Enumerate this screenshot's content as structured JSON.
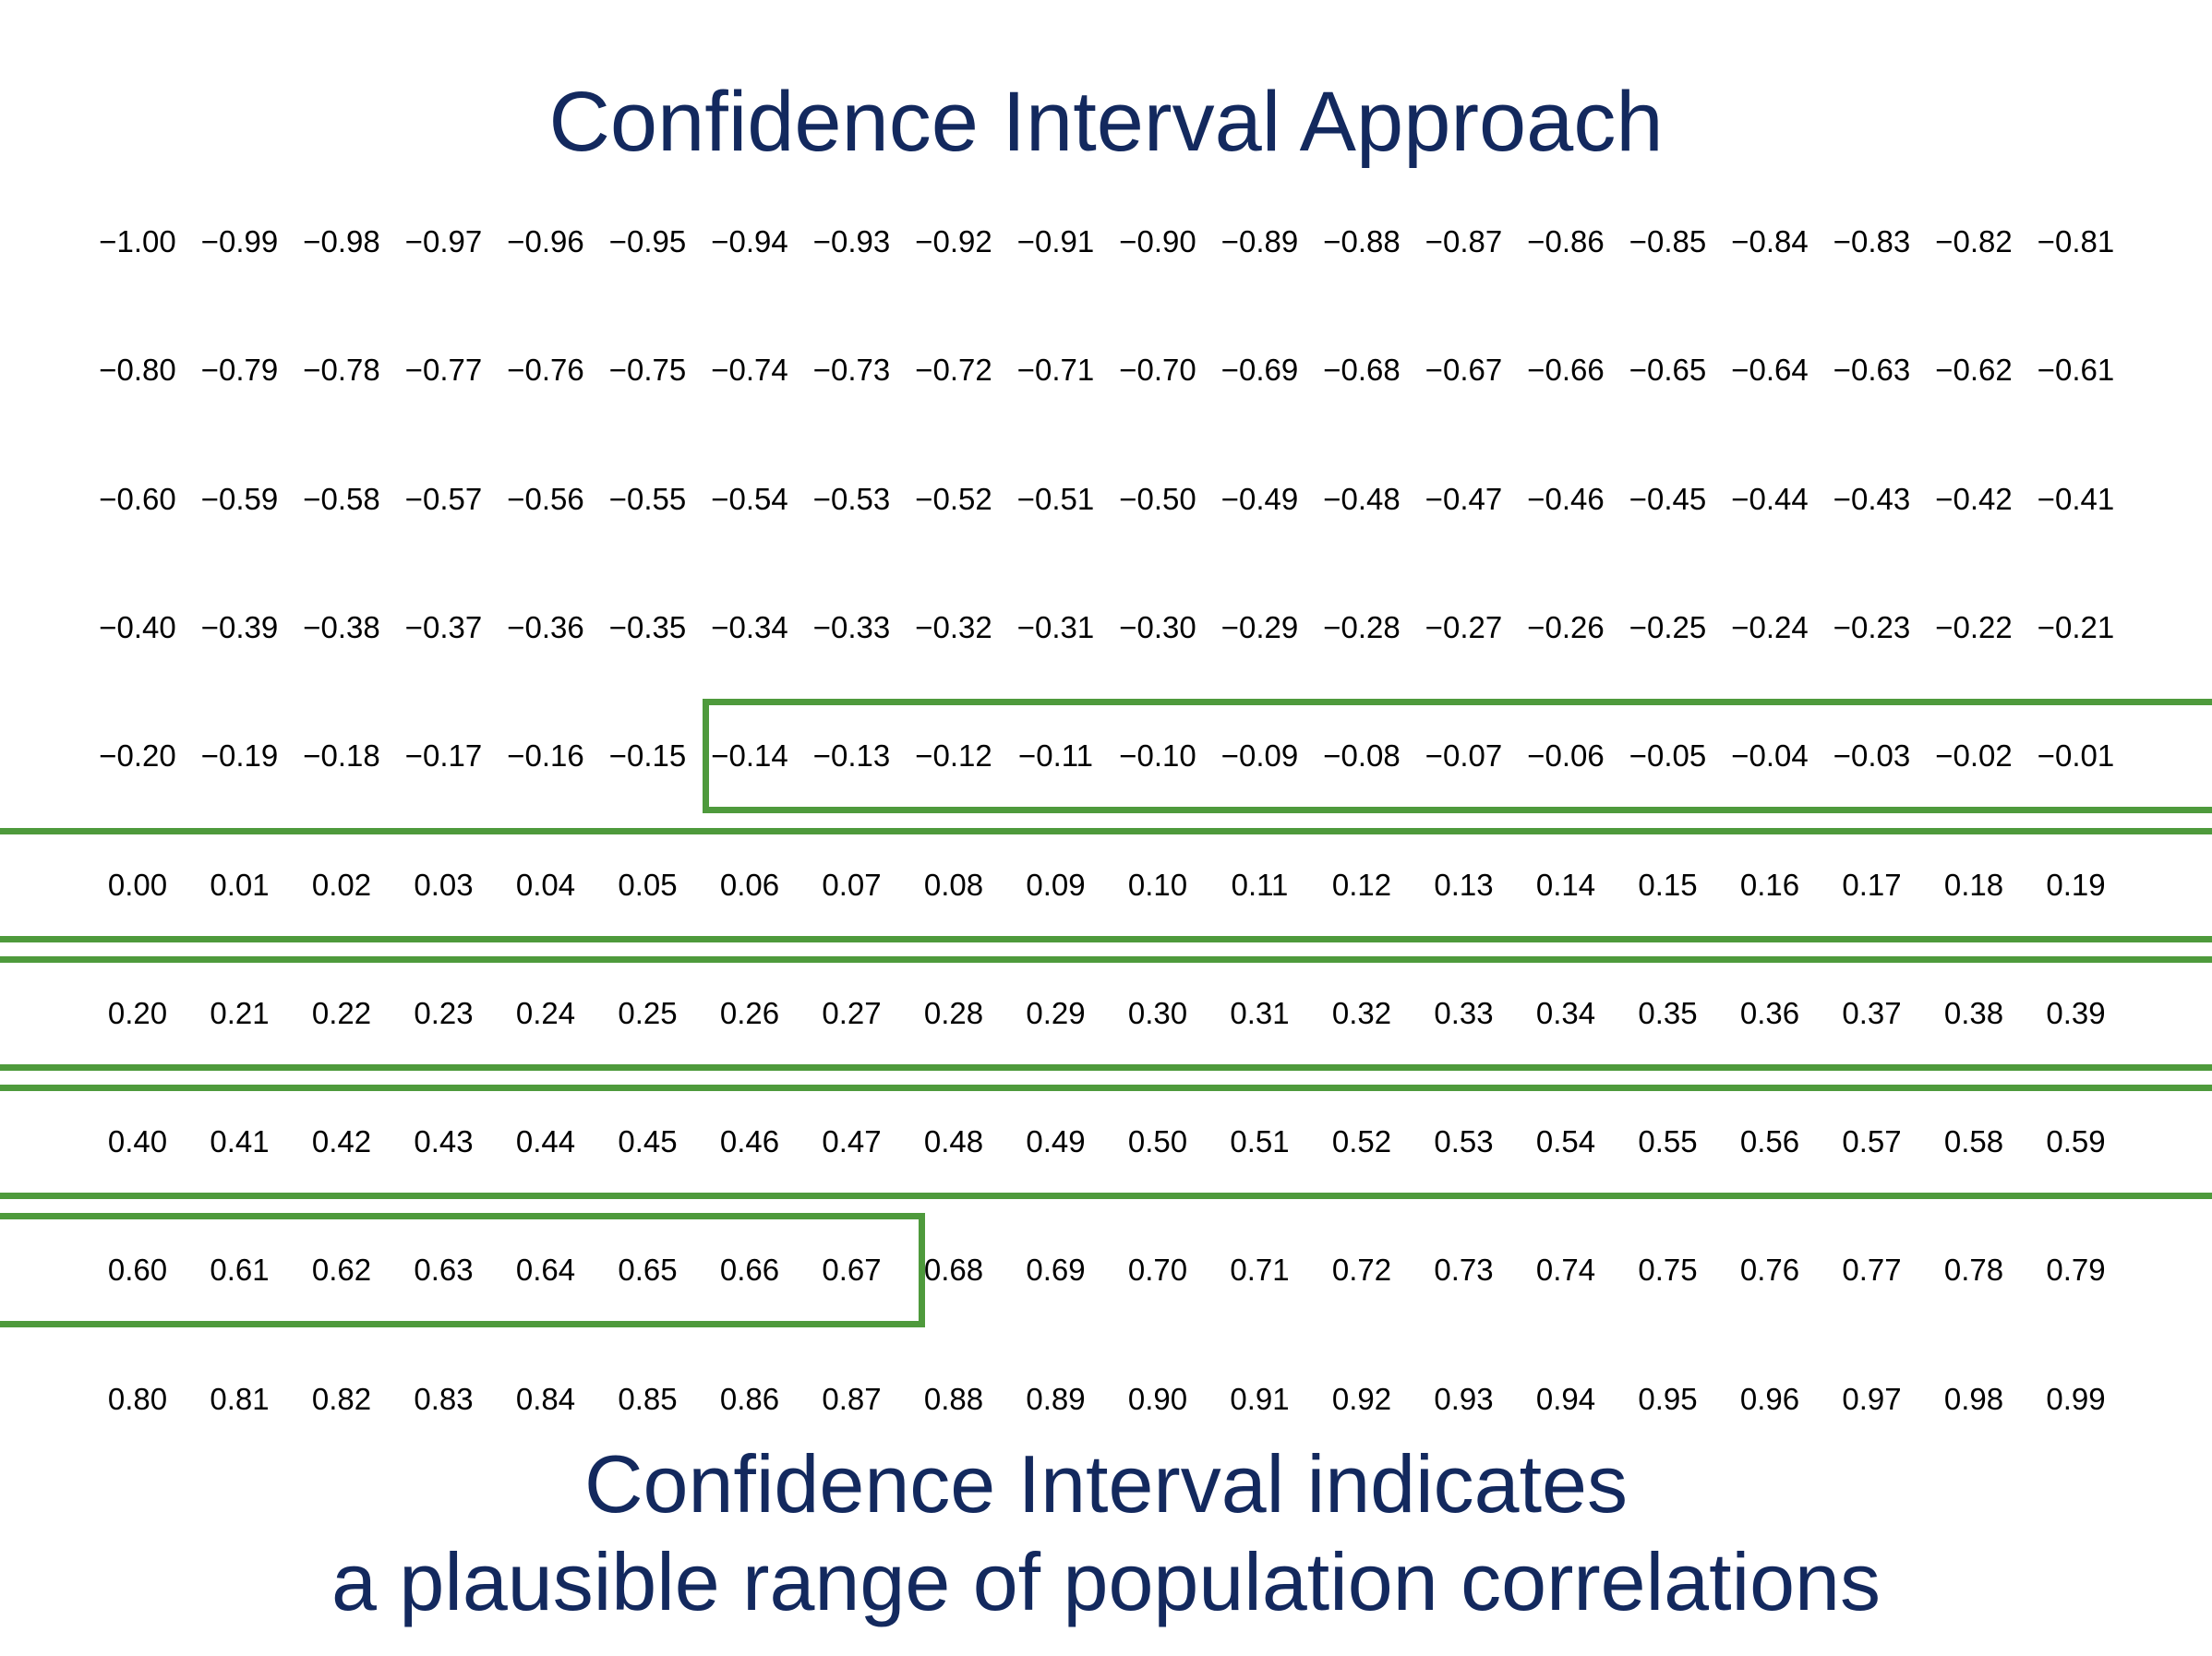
{
  "title": "Confidence Interval Approach",
  "caption": {
    "line1": "Confidence Interval indicates",
    "line2": "a plausible range of population correlations"
  },
  "highlight_color": "#4e9a3c",
  "text_color": "#13295e",
  "grid": {
    "columns_per_row": 20,
    "rows": [
      [
        "−1.00",
        "−0.99",
        "−0.98",
        "−0.97",
        "−0.96",
        "−0.95",
        "−0.94",
        "−0.93",
        "−0.92",
        "−0.91",
        "−0.90",
        "−0.89",
        "−0.88",
        "−0.87",
        "−0.86",
        "−0.85",
        "−0.84",
        "−0.83",
        "−0.82",
        "−0.81"
      ],
      [
        "−0.80",
        "−0.79",
        "−0.78",
        "−0.77",
        "−0.76",
        "−0.75",
        "−0.74",
        "−0.73",
        "−0.72",
        "−0.71",
        "−0.70",
        "−0.69",
        "−0.68",
        "−0.67",
        "−0.66",
        "−0.65",
        "−0.64",
        "−0.63",
        "−0.62",
        "−0.61"
      ],
      [
        "−0.60",
        "−0.59",
        "−0.58",
        "−0.57",
        "−0.56",
        "−0.55",
        "−0.54",
        "−0.53",
        "−0.52",
        "−0.51",
        "−0.50",
        "−0.49",
        "−0.48",
        "−0.47",
        "−0.46",
        "−0.45",
        "−0.44",
        "−0.43",
        "−0.42",
        "−0.41"
      ],
      [
        "−0.40",
        "−0.39",
        "−0.38",
        "−0.37",
        "−0.36",
        "−0.35",
        "−0.34",
        "−0.33",
        "−0.32",
        "−0.31",
        "−0.30",
        "−0.29",
        "−0.28",
        "−0.27",
        "−0.26",
        "−0.25",
        "−0.24",
        "−0.23",
        "−0.22",
        "−0.21"
      ],
      [
        "−0.20",
        "−0.19",
        "−0.18",
        "−0.17",
        "−0.16",
        "−0.15",
        "−0.14",
        "−0.13",
        "−0.12",
        "−0.11",
        "−0.10",
        "−0.09",
        "−0.08",
        "−0.07",
        "−0.06",
        "−0.05",
        "−0.04",
        "−0.03",
        "−0.02",
        "−0.01"
      ],
      [
        "0.00",
        "0.01",
        "0.02",
        "0.03",
        "0.04",
        "0.05",
        "0.06",
        "0.07",
        "0.08",
        "0.09",
        "0.10",
        "0.11",
        "0.12",
        "0.13",
        "0.14",
        "0.15",
        "0.16",
        "0.17",
        "0.18",
        "0.19"
      ],
      [
        "0.20",
        "0.21",
        "0.22",
        "0.23",
        "0.24",
        "0.25",
        "0.26",
        "0.27",
        "0.28",
        "0.29",
        "0.30",
        "0.31",
        "0.32",
        "0.33",
        "0.34",
        "0.35",
        "0.36",
        "0.37",
        "0.38",
        "0.39"
      ],
      [
        "0.40",
        "0.41",
        "0.42",
        "0.43",
        "0.44",
        "0.45",
        "0.46",
        "0.47",
        "0.48",
        "0.49",
        "0.50",
        "0.51",
        "0.52",
        "0.53",
        "0.54",
        "0.55",
        "0.56",
        "0.57",
        "0.58",
        "0.59"
      ],
      [
        "0.60",
        "0.61",
        "0.62",
        "0.63",
        "0.64",
        "0.65",
        "0.66",
        "0.67",
        "0.68",
        "0.69",
        "0.70",
        "0.71",
        "0.72",
        "0.73",
        "0.74",
        "0.75",
        "0.76",
        "0.77",
        "0.78",
        "0.79"
      ],
      [
        "0.80",
        "0.81",
        "0.82",
        "0.83",
        "0.84",
        "0.85",
        "0.86",
        "0.87",
        "0.88",
        "0.89",
        "0.90",
        "0.91",
        "0.92",
        "0.93",
        "0.94",
        "0.95",
        "0.96",
        "0.97",
        "0.98",
        "0.99"
      ]
    ]
  },
  "confidence_interval": {
    "lower": "−0.14",
    "upper": "0.67"
  }
}
